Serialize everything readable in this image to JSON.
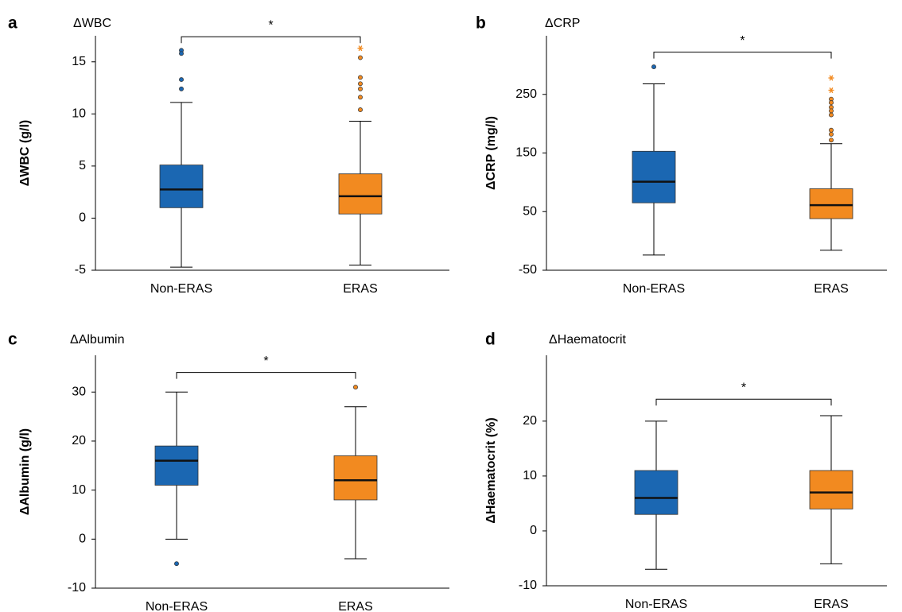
{
  "chart_data": [
    {
      "type": "box",
      "panel": "a",
      "title": "ΔWBC",
      "ylabel": "ΔWBC (g/l)",
      "categories": [
        "Non-ERAS",
        "ERAS"
      ],
      "ylim": [
        -5,
        17.5
      ],
      "yticks": [
        -5,
        0,
        5,
        10,
        15
      ],
      "boxes": [
        {
          "color": "#1b67b2",
          "low": -4.7,
          "q1": 1.0,
          "median": 2.75,
          "q3": 5.1,
          "high": 11.1,
          "outliers": [
            16.1,
            15.8,
            13.3,
            12.4
          ],
          "extremes": []
        },
        {
          "color": "#f28a20",
          "low": -4.5,
          "q1": 0.4,
          "median": 2.1,
          "q3": 4.25,
          "high": 9.3,
          "outliers": [
            15.4,
            13.5,
            12.9,
            12.4,
            11.6,
            10.4
          ],
          "extremes": [
            16.3
          ]
        }
      ],
      "significance": {
        "label": "*",
        "y": 17.4
      }
    },
    {
      "type": "box",
      "panel": "b",
      "title": "ΔCRP",
      "ylabel": "ΔCRP (mg/l)",
      "categories": [
        "Non-ERAS",
        "ERAS"
      ],
      "ylim": [
        -50,
        350
      ],
      "yticks": [
        -50,
        50,
        150,
        250
      ],
      "boxes": [
        {
          "color": "#1b67b2",
          "low": -24,
          "q1": 65,
          "median": 101,
          "q3": 153,
          "high": 268,
          "outliers": [
            297
          ],
          "extremes": []
        },
        {
          "color": "#f28a20",
          "low": -16,
          "q1": 38,
          "median": 61,
          "q3": 89,
          "high": 166,
          "outliers": [
            189,
            182,
            172,
            242,
            236,
            228,
            222,
            215
          ],
          "extremes": [
            278,
            257
          ]
        }
      ],
      "significance": {
        "label": "*",
        "y": 322
      }
    },
    {
      "type": "box",
      "panel": "c",
      "title": "ΔAlbumin",
      "ylabel": "ΔAlbumin (g/l)",
      "categories": [
        "Non-ERAS",
        "ERAS"
      ],
      "ylim": [
        -10,
        37.5
      ],
      "yticks": [
        -10,
        0,
        10,
        20,
        30
      ],
      "boxes": [
        {
          "color": "#1b67b2",
          "low": 0,
          "q1": 11,
          "median": 16,
          "q3": 19,
          "high": 30,
          "outliers": [
            -5
          ],
          "extremes": []
        },
        {
          "color": "#f28a20",
          "low": -4,
          "q1": 8,
          "median": 12,
          "q3": 17,
          "high": 27,
          "outliers": [
            31
          ],
          "extremes": []
        }
      ],
      "significance": {
        "label": "*",
        "y": 34
      }
    },
    {
      "type": "box",
      "panel": "d",
      "title": "ΔHaematocrit",
      "ylabel": "ΔHaematocrit (%)",
      "categories": [
        "Non-ERAS",
        "ERAS"
      ],
      "ylim": [
        -10,
        32
      ],
      "yticks": [
        -10,
        0,
        10,
        20
      ],
      "boxes": [
        {
          "color": "#1b67b2",
          "low": -7,
          "q1": 3,
          "median": 6,
          "q3": 11,
          "high": 20,
          "outliers": [],
          "extremes": []
        },
        {
          "color": "#f28a20",
          "low": -6,
          "q1": 4,
          "median": 7,
          "q3": 11,
          "high": 21,
          "outliers": [],
          "extremes": []
        }
      ],
      "significance": {
        "label": "*",
        "y": 24
      }
    }
  ]
}
